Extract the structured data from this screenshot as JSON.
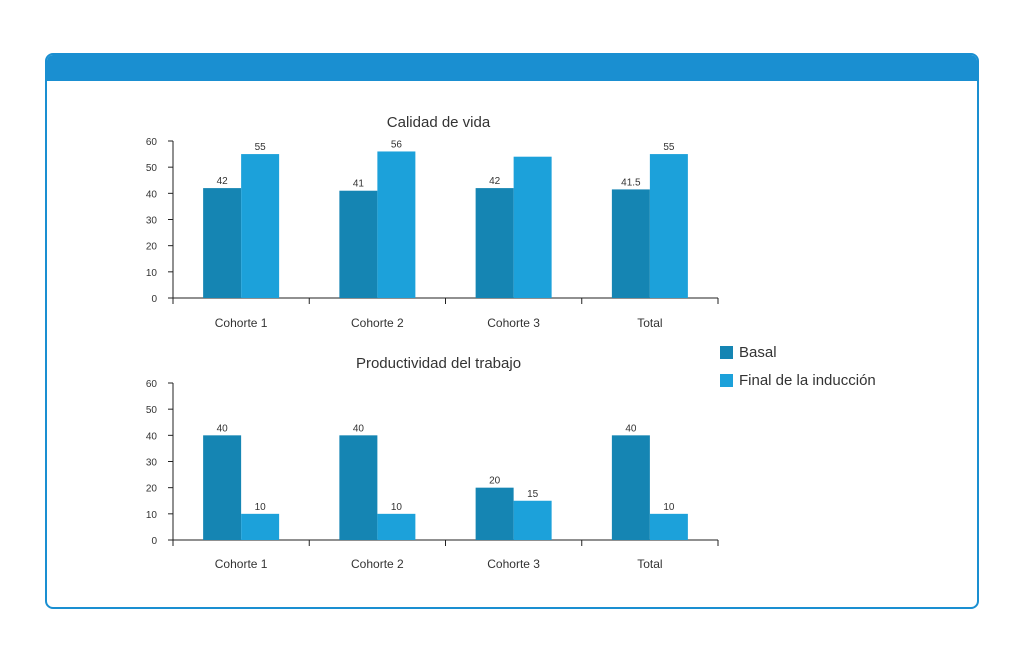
{
  "colors": {
    "header": "#1a8fd1",
    "basal": "#1585b3",
    "final": "#1ca1da",
    "axis": "#222222",
    "text": "#333333"
  },
  "legend": {
    "items": [
      {
        "label": "Basal",
        "color": "#1585b3"
      },
      {
        "label": "Final de la inducción",
        "color": "#1ca1da"
      }
    ]
  },
  "chart_data": [
    {
      "type": "bar",
      "title": "Calidad de vida",
      "categories": [
        "Cohorte 1",
        "Cohorte 2",
        "Cohorte 3",
        "Total"
      ],
      "ylim": [
        0,
        60
      ],
      "yticks": [
        0,
        10,
        20,
        30,
        40,
        50,
        60
      ],
      "series": [
        {
          "name": "Basal",
          "values": [
            42,
            41,
            42,
            41.5
          ],
          "labels": [
            "42",
            "41",
            "42",
            "41.5"
          ]
        },
        {
          "name": "Final de la inducción",
          "values": [
            55,
            56,
            54,
            55
          ],
          "labels": [
            "55",
            "56",
            "",
            "55"
          ]
        }
      ]
    },
    {
      "type": "bar",
      "title": "Productividad del trabajo",
      "categories": [
        "Cohorte 1",
        "Cohorte 2",
        "Cohorte 3",
        "Total"
      ],
      "ylim": [
        0,
        60
      ],
      "yticks": [
        0,
        10,
        20,
        30,
        40,
        50,
        60
      ],
      "series": [
        {
          "name": "Basal",
          "values": [
            40,
            40,
            20,
            40
          ],
          "labels": [
            "40",
            "40",
            "20",
            "40"
          ]
        },
        {
          "name": "Final de la inducción",
          "values": [
            10,
            10,
            15,
            10
          ],
          "labels": [
            "10",
            "10",
            "15",
            "10"
          ]
        }
      ]
    }
  ]
}
